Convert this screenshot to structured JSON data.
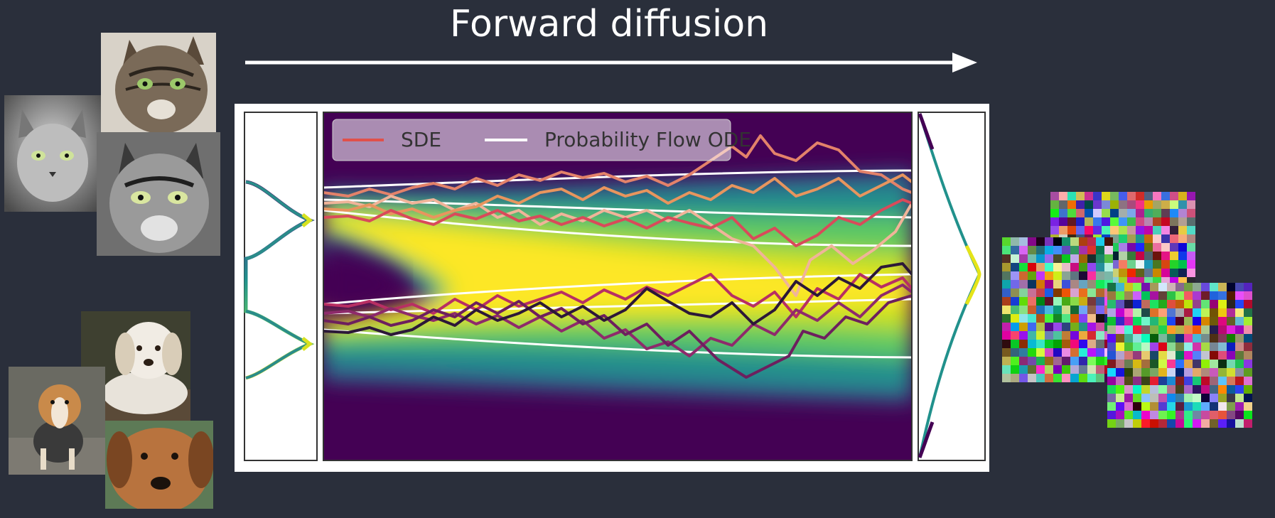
{
  "title": "Forward diffusion",
  "legend": {
    "sde_label": "SDE",
    "ode_label": "Probability Flow ODE",
    "sde_color": "#e0504a",
    "ode_color": "#ffffff"
  },
  "left_images": {
    "cats": [
      "cat-photo-tabby",
      "cat-photo-gray",
      "cat-photo-bw"
    ],
    "dogs": [
      "dog-photo-white",
      "dog-photo-beagle",
      "dog-photo-brown"
    ]
  },
  "colors": {
    "background": "#2a2f3b",
    "arrow": "#ffffff",
    "viridis_low": "#440154",
    "viridis_high": "#fde725"
  }
}
